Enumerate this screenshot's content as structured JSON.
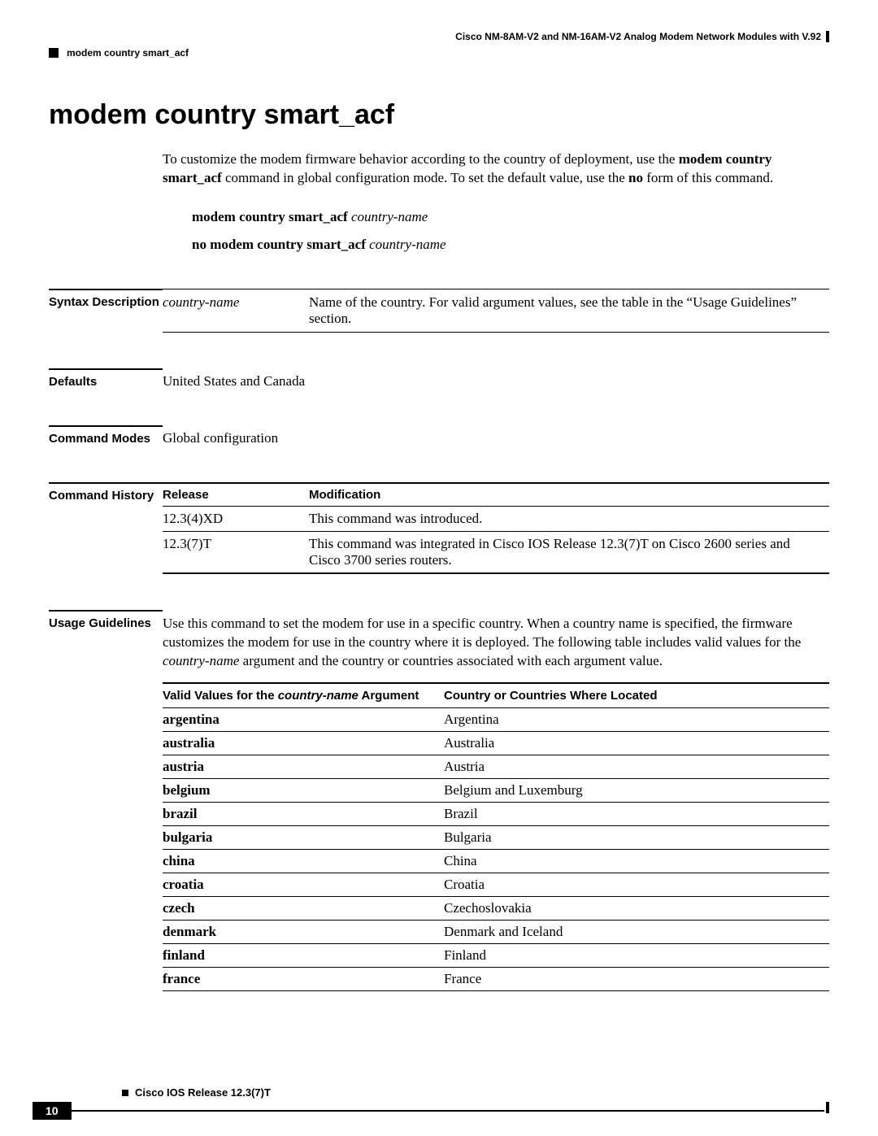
{
  "header": {
    "product_line": "Cisco NM-8AM-V2 and NM-16AM-V2 Analog Modem Network Modules with V.92",
    "breadcrumb": "modem country smart_acf"
  },
  "title": "modem country smart_acf",
  "intro": {
    "prefix": "To customize the modem firmware behavior according to the country of deployment, use the ",
    "cmd_bold_1": "modem country smart_acf",
    "middle": " command in global configuration mode. To set the default value, use the ",
    "cmd_bold_2": "no",
    "suffix": " form of this command."
  },
  "syntax": {
    "line1_bold": "modem country smart_acf",
    "line1_italic": "country-name",
    "line2_bold": "no modem country smart_acf",
    "line2_italic": "country-name"
  },
  "labels": {
    "syntax_description": "Syntax Description",
    "defaults": "Defaults",
    "command_modes": "Command Modes",
    "command_history": "Command History",
    "usage_guidelines": "Usage Guidelines"
  },
  "syntax_description": {
    "argument": "country-name",
    "description": "Name of the country. For valid argument values, see the table in the “Usage Guidelines” section."
  },
  "defaults_value": "United States and Canada",
  "command_modes_value": "Global configuration",
  "command_history": {
    "col_release": "Release",
    "col_modification": "Modification",
    "rows": [
      {
        "release": "12.3(4)XD",
        "modification": "This command was introduced."
      },
      {
        "release": "12.3(7)T",
        "modification": "This command was integrated in Cisco IOS Release 12.3(7)T on Cisco 2600 series and Cisco 3700 series routers."
      }
    ]
  },
  "usage": {
    "p1_a": "Use this command to set the modem for use in a specific country. When a country name is specified, the firmware customizes the modem for use in the country where it is deployed. The following table includes valid values for the ",
    "p1_italic": "country-name",
    "p1_b": " argument and the country or countries associated with each argument value."
  },
  "country_table": {
    "col1_a": "Valid Values for the ",
    "col1_italic": "country-name",
    "col1_b": " Argument",
    "col2": "Country or Countries Where Located",
    "rows": [
      {
        "value": "argentina",
        "country": "Argentina"
      },
      {
        "value": "australia",
        "country": "Australia"
      },
      {
        "value": "austria",
        "country": "Austria"
      },
      {
        "value": "belgium",
        "country": "Belgium and Luxemburg"
      },
      {
        "value": "brazil",
        "country": "Brazil"
      },
      {
        "value": "bulgaria",
        "country": "Bulgaria"
      },
      {
        "value": "china",
        "country": "China"
      },
      {
        "value": "croatia",
        "country": "Croatia"
      },
      {
        "value": "czech",
        "country": "Czechoslovakia"
      },
      {
        "value": "denmark",
        "country": "Denmark and Iceland"
      },
      {
        "value": "finland",
        "country": "Finland"
      },
      {
        "value": "france",
        "country": "France"
      }
    ]
  },
  "footer": {
    "release": "Cisco IOS Release 12.3(7)T",
    "page": "10"
  }
}
